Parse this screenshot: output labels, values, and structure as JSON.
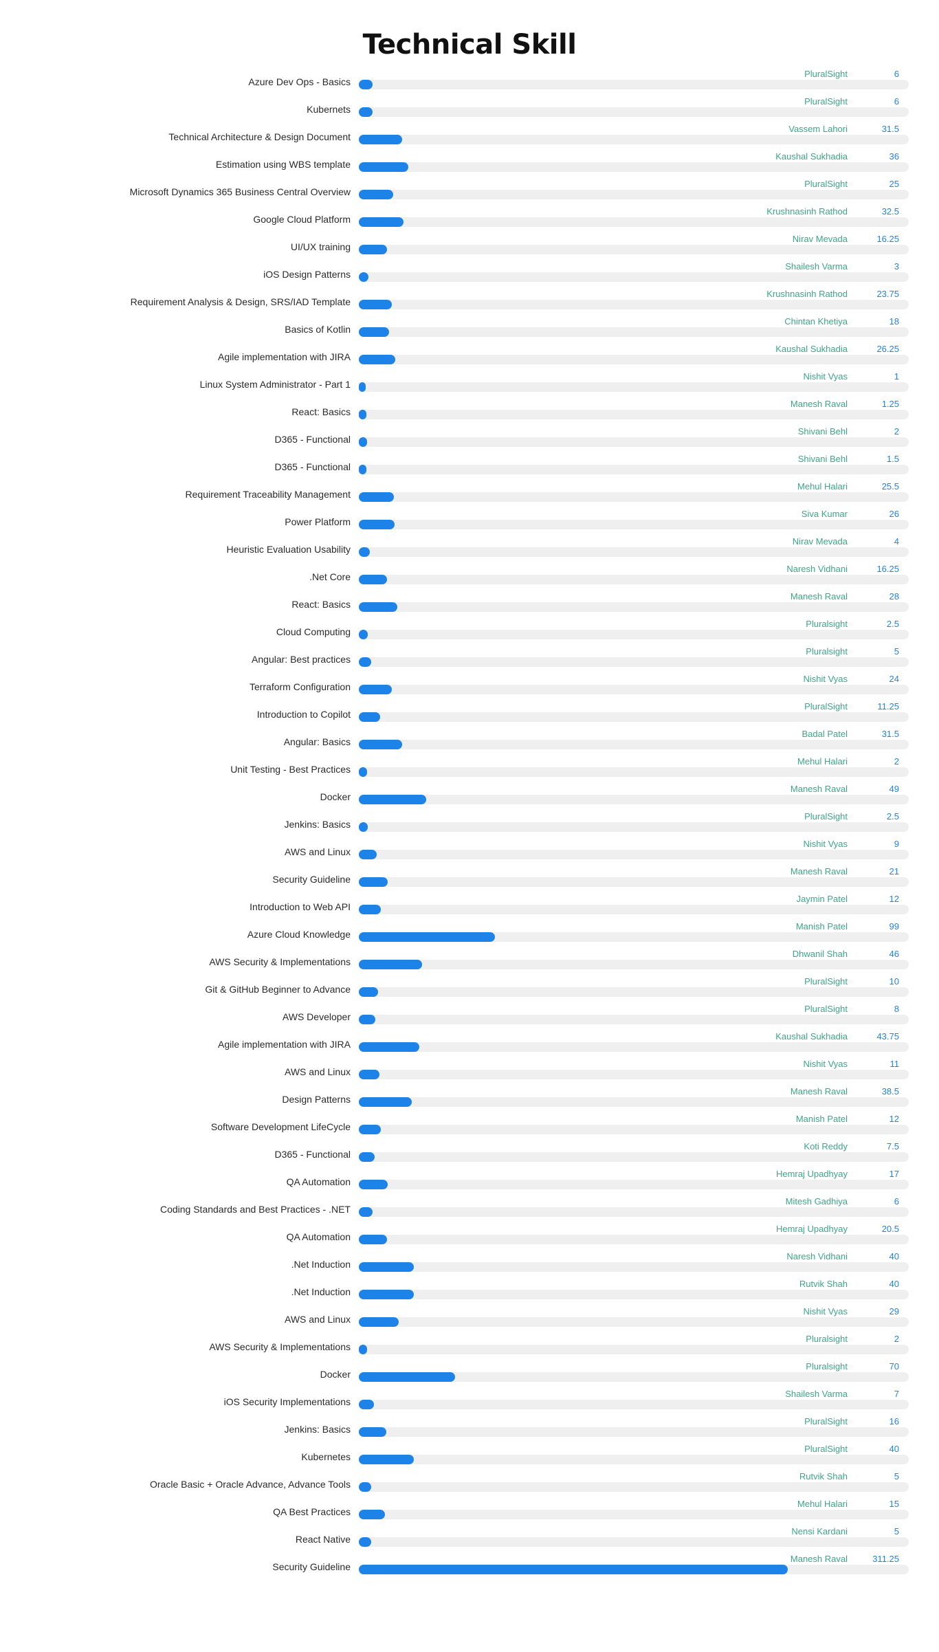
{
  "chart_data": {
    "type": "bar",
    "orientation": "horizontal",
    "title": "Technical Skill",
    "xlim": [
      0,
      311.25
    ],
    "bar_color": "#1e83e8",
    "track_color": "#efefef",
    "trainer_color": "#3aa884",
    "value_color": "#1e83e8",
    "rows": [
      {
        "skill": "Azure Dev Ops - Basics",
        "trainer": "PluralSight",
        "value": 6,
        "display": "6"
      },
      {
        "skill": "Kubernets",
        "trainer": "PluralSight",
        "value": 6,
        "display": "6"
      },
      {
        "skill": "Technical Architecture & Design Document",
        "trainer": "Vassem Lahori",
        "value": 31.5,
        "display": "31.5"
      },
      {
        "skill": "Estimation using WBS template",
        "trainer": "Kaushal Sukhadia",
        "value": 36,
        "display": "36"
      },
      {
        "skill": "Microsoft Dynamics 365 Business Central Overview",
        "trainer": "PluralSight",
        "value": 25,
        "display": "25"
      },
      {
        "skill": "Google Cloud Platform",
        "trainer": "Krushnasinh Rathod",
        "value": 32.5,
        "display": "32.5"
      },
      {
        "skill": "UI/UX training",
        "trainer": "Nirav Mevada",
        "value": 16.25,
        "display": "16.25"
      },
      {
        "skill": "iOS Design Patterns",
        "trainer": "Shailesh Varma",
        "value": 3,
        "display": "3"
      },
      {
        "skill": "Requirement Analysis & Design, SRS/IAD Template",
        "trainer": "Krushnasinh Rathod",
        "value": 23.75,
        "display": "23.75"
      },
      {
        "skill": "Basics of Kotlin",
        "trainer": "Chintan Khetiya",
        "value": 18,
        "display": "18"
      },
      {
        "skill": "Agile implementation with JIRA",
        "trainer": "Kaushal Sukhadia",
        "value": 26.25,
        "display": "26.25"
      },
      {
        "skill": "Linux System Administrator - Part 1",
        "trainer": "Nishit Vyas",
        "value": 1,
        "display": "1"
      },
      {
        "skill": "React: Basics",
        "trainer": "Manesh Raval",
        "value": 1.25,
        "display": "1.25"
      },
      {
        "skill": "D365 - Functional",
        "trainer": "Shivani Behl",
        "value": 2,
        "display": "2"
      },
      {
        "skill": "D365 - Functional",
        "trainer": "Shivani Behl",
        "value": 1.5,
        "display": "1.5"
      },
      {
        "skill": "Requirement Traceability Management",
        "trainer": "Mehul Halari",
        "value": 25.5,
        "display": "25.5"
      },
      {
        "skill": "Power Platform",
        "trainer": "Siva Kumar",
        "value": 26,
        "display": "26"
      },
      {
        "skill": "Heuristic Evaluation Usability",
        "trainer": "Nirav Mevada",
        "value": 4,
        "display": "4"
      },
      {
        "skill": ".Net Core",
        "trainer": "Naresh Vidhani",
        "value": 16.25,
        "display": "16.25"
      },
      {
        "skill": "React: Basics",
        "trainer": "Manesh Raval",
        "value": 28,
        "display": "28"
      },
      {
        "skill": "Cloud Computing",
        "trainer": "Pluralsight",
        "value": 2.5,
        "display": "2.5"
      },
      {
        "skill": "Angular: Best practices",
        "trainer": "Pluralsight",
        "value": 5,
        "display": "5"
      },
      {
        "skill": "Terraform Configuration",
        "trainer": "Nishit Vyas",
        "value": 24,
        "display": "24"
      },
      {
        "skill": "Introduction to Copilot",
        "trainer": "PluralSight",
        "value": 11.25,
        "display": "11.25"
      },
      {
        "skill": "Angular: Basics",
        "trainer": "Badal Patel",
        "value": 31.5,
        "display": "31.5"
      },
      {
        "skill": "Unit Testing - Best Practices",
        "trainer": "Mehul Halari",
        "value": 2,
        "display": "2"
      },
      {
        "skill": "Docker",
        "trainer": "Manesh Raval",
        "value": 49,
        "display": "49"
      },
      {
        "skill": "Jenkins: Basics",
        "trainer": "PluralSight",
        "value": 2.5,
        "display": "2.5"
      },
      {
        "skill": "AWS and Linux",
        "trainer": "Nishit Vyas",
        "value": 9,
        "display": "9"
      },
      {
        "skill": "Security Guideline",
        "trainer": "Manesh Raval",
        "value": 21,
        "display": "21"
      },
      {
        "skill": "Introduction to Web API",
        "trainer": "Jaymin Patel",
        "value": 12,
        "display": "12"
      },
      {
        "skill": "Azure Cloud Knowledge",
        "trainer": "Manish Patel",
        "value": 99,
        "display": "99"
      },
      {
        "skill": "AWS Security & Implementations",
        "trainer": "Dhwanil Shah",
        "value": 46,
        "display": "46"
      },
      {
        "skill": "Git & GitHub Beginner to Advance",
        "trainer": "PluralSight",
        "value": 10,
        "display": "10"
      },
      {
        "skill": "AWS Developer",
        "trainer": "PluralSight",
        "value": 8,
        "display": "8"
      },
      {
        "skill": "Agile implementation with JIRA",
        "trainer": "Kaushal Sukhadia",
        "value": 43.75,
        "display": "43.75"
      },
      {
        "skill": "AWS and Linux",
        "trainer": "Nishit Vyas",
        "value": 11,
        "display": "11"
      },
      {
        "skill": "Design Patterns",
        "trainer": "Manesh Raval",
        "value": 38.5,
        "display": "38.5"
      },
      {
        "skill": "Software Development LifeCycle",
        "trainer": "Manish Patel",
        "value": 12,
        "display": "12"
      },
      {
        "skill": "D365 - Functional",
        "trainer": "Koti Reddy",
        "value": 7.5,
        "display": "7.5"
      },
      {
        "skill": "QA Automation",
        "trainer": "Hemraj Upadhyay",
        "value": 17,
        "display": "17"
      },
      {
        "skill": "Coding Standards and Best Practices - .NET",
        "trainer": "Mitesh Gadhiya",
        "value": 6,
        "display": "6"
      },
      {
        "skill": "QA Automation",
        "trainer": "Hemraj Upadhyay",
        "value": 20.5,
        "display": "20.5"
      },
      {
        "skill": ".Net Induction",
        "trainer": "Naresh Vidhani",
        "value": 40,
        "display": "40"
      },
      {
        "skill": ".Net Induction",
        "trainer": "Rutvik Shah",
        "value": 40,
        "display": "40"
      },
      {
        "skill": "AWS and Linux",
        "trainer": "Nishit Vyas",
        "value": 29,
        "display": "29"
      },
      {
        "skill": "AWS Security & Implementations",
        "trainer": "Pluralsight",
        "value": 2,
        "display": "2"
      },
      {
        "skill": "Docker",
        "trainer": "Pluralsight",
        "value": 70,
        "display": "70"
      },
      {
        "skill": "iOS Security Implementations",
        "trainer": "Shailesh Varma",
        "value": 7,
        "display": "7"
      },
      {
        "skill": "Jenkins: Basics",
        "trainer": "PluralSight",
        "value": 16,
        "display": "16"
      },
      {
        "skill": "Kubernetes",
        "trainer": "PluralSight",
        "value": 40,
        "display": "40"
      },
      {
        "skill": "Oracle Basic + Oracle Advance, Advance Tools",
        "trainer": "Rutvik Shah",
        "value": 5,
        "display": "5"
      },
      {
        "skill": "QA Best Practices",
        "trainer": "Mehul Halari",
        "value": 15,
        "display": "15"
      },
      {
        "skill": "React Native",
        "trainer": "Nensi Kardani",
        "value": 5,
        "display": "5"
      },
      {
        "skill": "Security Guideline",
        "trainer": "Manesh Raval",
        "value": 311.25,
        "display": "311.25"
      }
    ]
  }
}
